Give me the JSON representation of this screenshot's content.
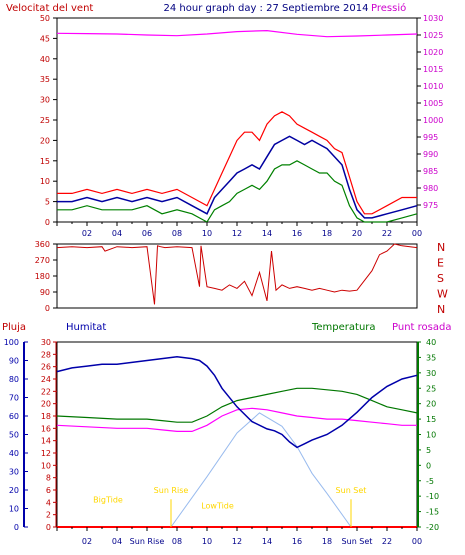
{
  "header": {
    "wind_label": "Velocitat del vent",
    "title": "24 hour graph day : 27 Septiembre 2014",
    "pressure_label": "Pressió"
  },
  "colors": {
    "wind_gust": "#ff0000",
    "wind_avg": "#0000a0",
    "wind_low": "#008000",
    "pressure": "#ff00ff",
    "direction": "#cc0000",
    "humidity": "#0000aa",
    "temperature": "#007700",
    "dewpoint": "#ff00ff",
    "solar": "#99bbee",
    "rain": "#ff0000",
    "sun_events": "#ffd700"
  },
  "x_ticks": [
    "02",
    "04",
    "06",
    "08",
    "10",
    "12",
    "14",
    "16",
    "18",
    "20",
    "22",
    "00"
  ],
  "bottom_x_ticks": [
    "02",
    "04",
    "Sun Rise",
    "08",
    "10",
    "12",
    "14",
    "16",
    "18",
    "Sun Set",
    "22",
    "00"
  ],
  "chart_data": [
    {
      "type": "line",
      "name": "wind-pressure",
      "title": "24 hour graph day : 27 Septiembre 2014",
      "x_range": [
        0,
        24
      ],
      "left_axis": {
        "label": "Velocitat del vent",
        "ylim": [
          0,
          50
        ],
        "ticks": [
          "0",
          "5",
          "10",
          "15",
          "20",
          "25",
          "30",
          "35",
          "40",
          "45",
          "50"
        ]
      },
      "right_axis": {
        "label": "Pressió",
        "ylim": [
          970,
          1030
        ],
        "ticks": [
          "975",
          "980",
          "985",
          "990",
          "995",
          "1000",
          "1005",
          "1010",
          "1015",
          "1020",
          "1025",
          "1030"
        ]
      },
      "wind_avg": {
        "x": [
          0,
          1,
          2,
          3,
          4,
          5,
          6,
          7,
          8,
          9,
          10,
          10.5,
          11,
          11.5,
          12,
          12.5,
          13,
          13.5,
          14,
          14.5,
          15,
          15.5,
          16,
          16.5,
          17,
          17.5,
          18,
          18.5,
          19,
          19.5,
          20,
          20.5,
          21,
          22,
          23,
          24
        ],
        "y": [
          5,
          5,
          6,
          5,
          6,
          5,
          6,
          5,
          6,
          4,
          2,
          6,
          8,
          10,
          12,
          13,
          14,
          13,
          16,
          19,
          20,
          21,
          20,
          19,
          20,
          19,
          18,
          16,
          14,
          8,
          3,
          1,
          1,
          2,
          3,
          4
        ]
      },
      "wind_gust": {
        "x": [
          0,
          1,
          2,
          3,
          4,
          5,
          6,
          7,
          8,
          9,
          10,
          10.5,
          11,
          11.5,
          12,
          12.5,
          13,
          13.5,
          14,
          14.5,
          15,
          15.5,
          16,
          16.5,
          17,
          17.5,
          18,
          18.5,
          19,
          19.5,
          20,
          20.5,
          21,
          22,
          23,
          24
        ],
        "y": [
          7,
          7,
          8,
          7,
          8,
          7,
          8,
          7,
          8,
          6,
          4,
          8,
          12,
          16,
          20,
          22,
          22,
          20,
          24,
          26,
          27,
          26,
          24,
          23,
          22,
          21,
          20,
          18,
          17,
          11,
          5,
          2,
          2,
          4,
          6,
          6
        ]
      },
      "wind_low": {
        "x": [
          0,
          1,
          2,
          3,
          4,
          5,
          6,
          7,
          8,
          9,
          10,
          10.5,
          11,
          11.5,
          12,
          12.5,
          13,
          13.5,
          14,
          14.5,
          15,
          15.5,
          16,
          16.5,
          17,
          17.5,
          18,
          18.5,
          19,
          19.5,
          20,
          20.5,
          21,
          22,
          23,
          24
        ],
        "y": [
          3,
          3,
          4,
          3,
          3,
          3,
          4,
          2,
          3,
          2,
          0,
          3,
          4,
          5,
          7,
          8,
          9,
          8,
          10,
          13,
          14,
          14,
          15,
          14,
          13,
          12,
          12,
          10,
          9,
          4,
          1,
          0,
          0,
          0,
          1,
          2
        ]
      },
      "pressure": {
        "x": [
          0,
          2,
          4,
          6,
          8,
          10,
          12,
          14,
          16,
          18,
          20,
          22,
          24
        ],
        "y": [
          1025.5,
          1025.4,
          1025.3,
          1025,
          1024.8,
          1025.3,
          1026,
          1026.3,
          1025.2,
          1024.5,
          1024.7,
          1025,
          1025.3
        ]
      }
    },
    {
      "type": "line",
      "name": "wind-direction",
      "x_range": [
        0,
        24
      ],
      "left_axis": {
        "ylim": [
          0,
          360
        ],
        "ticks": [
          "0",
          "90",
          "180",
          "270",
          "360"
        ]
      },
      "right_axis": {
        "ticks": [
          "N",
          "W",
          "S",
          "E",
          "N"
        ]
      },
      "direction": {
        "x": [
          0,
          1,
          2,
          3,
          3.2,
          4,
          5,
          6,
          6.5,
          6.7,
          6.9,
          7.2,
          8,
          9,
          9.5,
          9.6,
          10,
          10.5,
          11,
          11.5,
          12,
          12.5,
          13,
          13.5,
          14,
          14.3,
          14.6,
          15,
          15.5,
          16,
          16.5,
          17,
          17.5,
          18,
          18.5,
          19,
          19.5,
          20,
          21,
          21.5,
          22,
          22.5,
          23,
          24
        ],
        "y": [
          340,
          345,
          340,
          345,
          320,
          345,
          340,
          345,
          20,
          350,
          345,
          340,
          345,
          340,
          120,
          350,
          120,
          110,
          100,
          130,
          110,
          150,
          70,
          200,
          40,
          320,
          100,
          130,
          110,
          120,
          110,
          100,
          110,
          100,
          90,
          100,
          95,
          100,
          210,
          300,
          320,
          360,
          350,
          340
        ]
      }
    },
    {
      "type": "line",
      "name": "humidity-temp-dewpoint",
      "x_range": [
        0,
        24
      ],
      "axis_labels": [
        "Pluja",
        "Humitat",
        "Temperatura",
        "Punt rosada"
      ],
      "rain_axis": {
        "ylim": [
          0,
          30
        ],
        "ticks": [
          "0",
          "2",
          "4",
          "6",
          "8",
          "10",
          "12",
          "14",
          "16",
          "18",
          "20",
          "22",
          "24",
          "26",
          "28",
          "30"
        ]
      },
      "humidity_axis": {
        "ylim": [
          0,
          100
        ],
        "ticks": [
          "0",
          "10",
          "20",
          "30",
          "40",
          "50",
          "60",
          "70",
          "80",
          "90",
          "100"
        ]
      },
      "temp_axis": {
        "ylim": [
          -20,
          40
        ],
        "ticks": [
          "-20",
          "-15",
          "-10",
          "-5",
          "0",
          "5",
          "10",
          "15",
          "20",
          "25",
          "30",
          "35",
          "40"
        ]
      },
      "humidity": {
        "x": [
          0,
          1,
          2,
          3,
          4,
          5,
          6,
          7,
          8,
          9,
          9.5,
          10,
          10.5,
          11,
          12,
          13,
          14,
          14.5,
          15,
          15.5,
          16,
          16.5,
          17,
          18,
          19,
          20,
          21,
          22,
          23,
          24
        ],
        "y": [
          84,
          86,
          87,
          88,
          88,
          89,
          90,
          91,
          92,
          91,
          90,
          87,
          82,
          75,
          65,
          57,
          53,
          52,
          50,
          46,
          43,
          45,
          47,
          50,
          55,
          62,
          70,
          76,
          80,
          82
        ]
      },
      "temperature": {
        "x": [
          0,
          2,
          4,
          6,
          7,
          8,
          9,
          10,
          11,
          12,
          13,
          14,
          15,
          16,
          17,
          18,
          19,
          20,
          21,
          22,
          23,
          24
        ],
        "y": [
          16,
          15.5,
          15,
          15,
          14.5,
          14,
          14,
          16,
          19,
          21,
          22,
          23,
          24,
          25,
          25,
          24.5,
          24,
          23,
          21,
          19,
          18,
          17
        ]
      },
      "dewpoint": {
        "x": [
          0,
          2,
          4,
          6,
          7,
          8,
          9,
          10,
          11,
          12,
          13,
          14,
          15,
          16,
          17,
          18,
          19,
          20,
          21,
          22,
          23,
          24
        ],
        "y": [
          13,
          12.5,
          12,
          12,
          11.5,
          11,
          11,
          13,
          16,
          18,
          18.5,
          18,
          17,
          16,
          15.5,
          15,
          15,
          14.5,
          14,
          13.5,
          13,
          13
        ]
      },
      "solar": {
        "x": [
          7.6,
          10,
          12,
          13.5,
          15,
          16,
          17,
          18,
          19.6
        ],
        "y": [
          0,
          7.5,
          14,
          17,
          15,
          12,
          8,
          5,
          0
        ]
      },
      "rain": {
        "x": [
          0,
          24
        ],
        "y": [
          0,
          0
        ]
      },
      "annotations": [
        {
          "text": "BigTide",
          "x": 3.4,
          "y": 4
        },
        {
          "text": "Sun Rise",
          "x": 7.6,
          "y": 5.5
        },
        {
          "text": "LowTide",
          "x": 10.7,
          "y": 3
        },
        {
          "text": "Sun Set",
          "x": 19.6,
          "y": 5.5
        }
      ]
    }
  ]
}
